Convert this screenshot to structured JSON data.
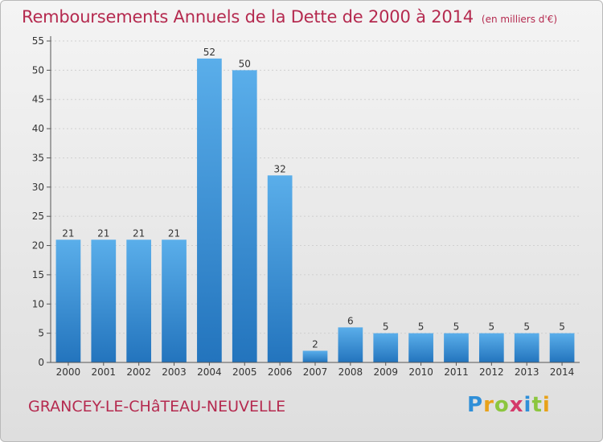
{
  "title": "Remboursements Annuels de la Dette de 2000 à 2014",
  "subtitle": "(en milliers d'€)",
  "commune": "GRANCEY-LE-CHâTEAU-NEUVELLE",
  "brand": {
    "letters": [
      "P",
      "r",
      "o",
      "x",
      "i",
      "t",
      "i"
    ],
    "colors": [
      "#2f8fd8",
      "#e8a21a",
      "#8cc63f",
      "#d43a6a",
      "#2f8fd8",
      "#8cc63f",
      "#e8a21a"
    ]
  },
  "colors": {
    "bar": "#3d9de0",
    "bar_dark": "#2577c0",
    "title": "#b52a4f",
    "grid": "#d0d0d0"
  },
  "chart_data": {
    "type": "bar",
    "title": "Remboursements Annuels de la Dette de 2000 à 2014",
    "xlabel": "",
    "ylabel": "",
    "ylim": [
      0,
      55
    ],
    "yticks": [
      0,
      5,
      10,
      15,
      20,
      25,
      30,
      35,
      40,
      45,
      50,
      55
    ],
    "grid": true,
    "categories": [
      "2000",
      "2001",
      "2002",
      "2003",
      "2004",
      "2005",
      "2006",
      "2007",
      "2008",
      "2009",
      "2010",
      "2011",
      "2012",
      "2013",
      "2014"
    ],
    "values": [
      21,
      21,
      21,
      21,
      52,
      50,
      32,
      2,
      6,
      5,
      5,
      5,
      5,
      5,
      5
    ]
  }
}
